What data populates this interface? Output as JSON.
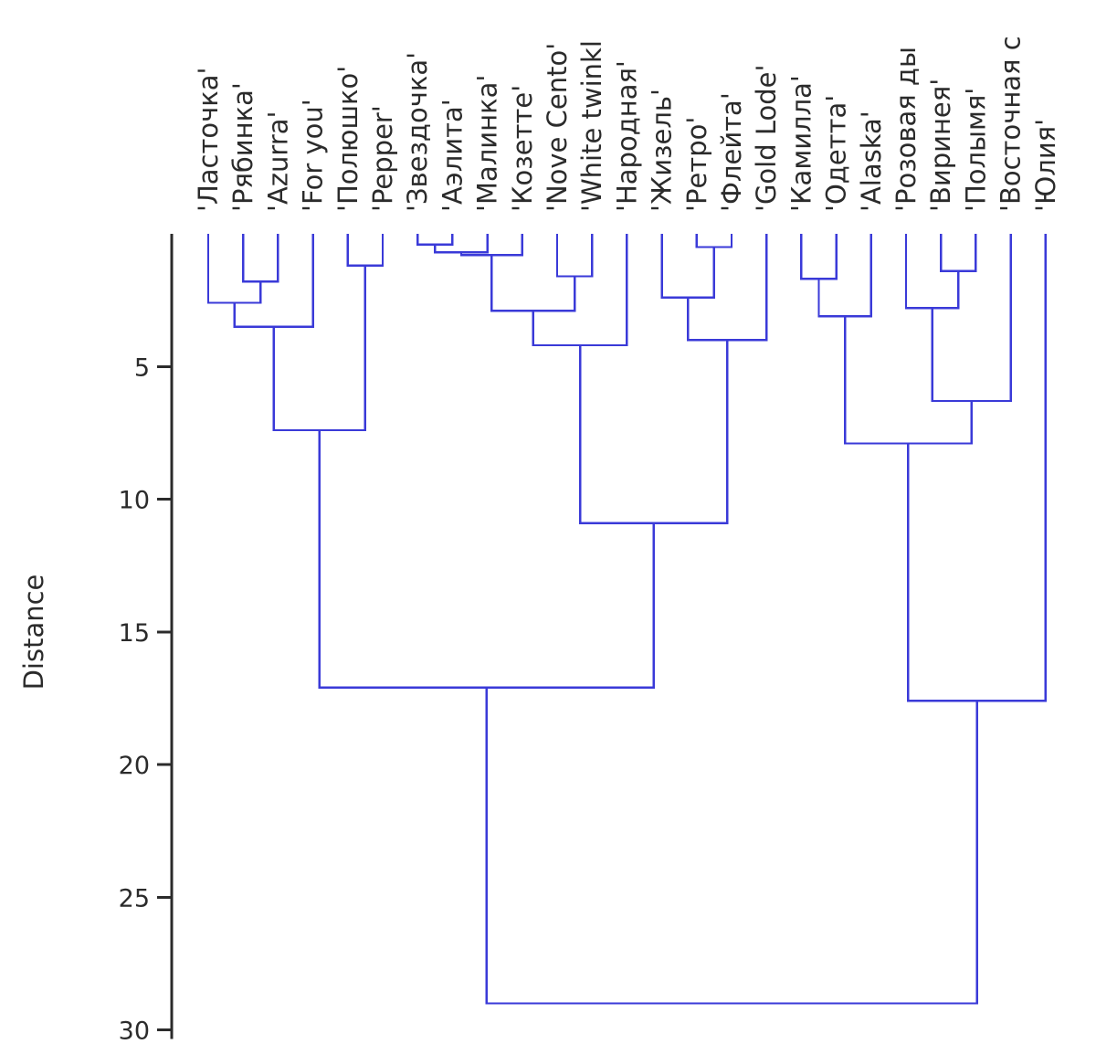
{
  "chart_data": {
    "type": "dendrogram",
    "ylabel": "Distance",
    "ylim": [
      0,
      30
    ],
    "yticks": [
      5,
      10,
      15,
      20,
      25,
      30
    ],
    "y_inverted": true,
    "grid": false,
    "line_color": "#3a3ad8",
    "leaves": [
      "'Ласточка'",
      "'Рябинка'",
      "'Azurra'",
      "'For you'",
      "'Полюшко'",
      "'Pepper'",
      "'Звездочка'",
      "'Аэлита'",
      "'Малинка'",
      "'Козетте'",
      "'Nove Cento'",
      "'White twinkl",
      "'Народная'",
      "'Жизель'",
      "'Ретро'",
      "'Флейта'",
      "'Gold Lode'",
      "'Камилла'",
      "'Одетта'",
      "'Alaska'",
      "'Розовая ды",
      "'Виринея'",
      "'Полымя'",
      "'Восточная с",
      "'Юлия'"
    ],
    "merges": [
      {
        "id": "m1",
        "a": "L1",
        "b": "L2",
        "height": 1.8
      },
      {
        "id": "m2",
        "a": "L0",
        "b": "m1",
        "height": 2.6
      },
      {
        "id": "m3",
        "a": "m2",
        "b": "L3",
        "height": 3.5
      },
      {
        "id": "m4",
        "a": "L4",
        "b": "L5",
        "height": 1.2
      },
      {
        "id": "m5",
        "a": "m3",
        "b": "m4",
        "height": 7.4
      },
      {
        "id": "m6",
        "a": "L6",
        "b": "L7",
        "height": 0.4
      },
      {
        "id": "m7",
        "a": "m6",
        "b": "L8",
        "height": 0.7
      },
      {
        "id": "m8",
        "a": "m7",
        "b": "L9",
        "height": 0.8
      },
      {
        "id": "m9",
        "a": "L10",
        "b": "L11",
        "height": 1.6
      },
      {
        "id": "m10",
        "a": "m8",
        "b": "m9",
        "height": 2.9
      },
      {
        "id": "m11",
        "a": "m10",
        "b": "L12",
        "height": 4.2
      },
      {
        "id": "m12",
        "a": "L14",
        "b": "L15",
        "height": 0.5
      },
      {
        "id": "m13",
        "a": "L13",
        "b": "m12",
        "height": 2.4
      },
      {
        "id": "m14",
        "a": "m13",
        "b": "L16",
        "height": 4.0
      },
      {
        "id": "m15",
        "a": "m11",
        "b": "m14",
        "height": 10.9
      },
      {
        "id": "m16",
        "a": "m5",
        "b": "m15",
        "height": 17.1
      },
      {
        "id": "m17",
        "a": "L17",
        "b": "L18",
        "height": 1.7
      },
      {
        "id": "m18",
        "a": "m17",
        "b": "L19",
        "height": 3.1
      },
      {
        "id": "m19",
        "a": "L21",
        "b": "L22",
        "height": 1.4
      },
      {
        "id": "m20",
        "a": "L20",
        "b": "m19",
        "height": 2.8
      },
      {
        "id": "m21",
        "a": "m20",
        "b": "L23",
        "height": 6.3
      },
      {
        "id": "m22",
        "a": "m18",
        "b": "m21",
        "height": 7.9
      },
      {
        "id": "m23",
        "a": "m22",
        "b": "L24",
        "height": 17.6
      },
      {
        "id": "m24",
        "a": "m16",
        "b": "m23",
        "height": 29.0
      }
    ]
  }
}
